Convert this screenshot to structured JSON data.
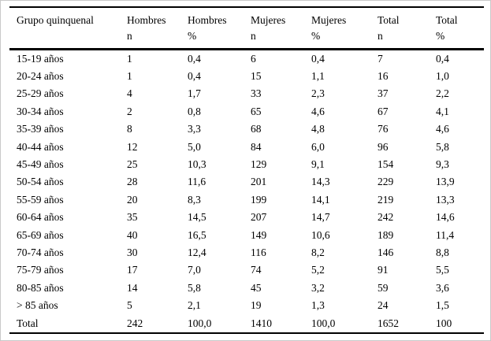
{
  "page_bg": "#ffffff",
  "frame_border_color": "#c9c9c9",
  "rule_color": "#000000",
  "chart_data": {
    "type": "table",
    "columns": [
      {
        "line1": "Grupo quinquenal",
        "line2": ""
      },
      {
        "line1": "Hombres",
        "line2": "n"
      },
      {
        "line1": "Hombres",
        "line2": "%"
      },
      {
        "line1": "Mujeres",
        "line2": "n"
      },
      {
        "line1": "Mujeres",
        "line2": "%"
      },
      {
        "line1": "Total",
        "line2": "n"
      },
      {
        "line1": "Total",
        "line2": "%"
      }
    ],
    "rows": [
      [
        "15-19 años",
        "1",
        "0,4",
        "6",
        "0,4",
        "7",
        "0,4"
      ],
      [
        "20-24 años",
        "1",
        "0,4",
        "15",
        "1,1",
        "16",
        "1,0"
      ],
      [
        "25-29 años",
        "4",
        "1,7",
        "33",
        "2,3",
        "37",
        "2,2"
      ],
      [
        "30-34 años",
        "2",
        "0,8",
        "65",
        "4,6",
        "67",
        "4,1"
      ],
      [
        "35-39 años",
        "8",
        "3,3",
        "68",
        "4,8",
        "76",
        "4,6"
      ],
      [
        "40-44 años",
        "12",
        "5,0",
        "84",
        "6,0",
        "96",
        "5,8"
      ],
      [
        "45-49 años",
        "25",
        "10,3",
        "129",
        "9,1",
        "154",
        "9,3"
      ],
      [
        "50-54 años",
        "28",
        "11,6",
        "201",
        "14,3",
        "229",
        "13,9"
      ],
      [
        "55-59 años",
        "20",
        "8,3",
        "199",
        "14,1",
        "219",
        "13,3"
      ],
      [
        "60-64 años",
        "35",
        "14,5",
        "207",
        "14,7",
        "242",
        "14,6"
      ],
      [
        "65-69 años",
        "40",
        "16,5",
        "149",
        "10,6",
        "189",
        "11,4"
      ],
      [
        "70-74 años",
        "30",
        "12,4",
        "116",
        "8,2",
        "146",
        "8,8"
      ],
      [
        "75-79 años",
        "17",
        "7,0",
        "74",
        "5,2",
        "91",
        "5,5"
      ],
      [
        "80-85 años",
        "14",
        "5,8",
        "45",
        "3,2",
        "59",
        "3,6"
      ],
      [
        "> 85 años",
        "5",
        "2,1",
        "19",
        "1,3",
        "24",
        "1,5"
      ],
      [
        "Total",
        "242",
        "100,0",
        "1410",
        "100,0",
        "1652",
        "100"
      ]
    ]
  }
}
